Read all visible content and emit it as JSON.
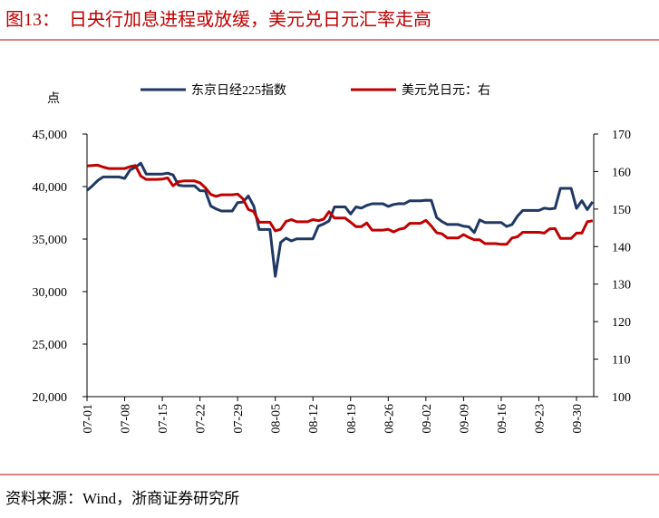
{
  "title": "图13：  日央行加息进程或放缓，美元兑日元汇率走高",
  "source": "资料来源：Wind，浙商证券研究所",
  "chart_data": {
    "type": "line",
    "y_label": "点",
    "categories": [
      "07-01",
      null,
      null,
      null,
      null,
      null,
      null,
      "07-08",
      null,
      null,
      null,
      null,
      null,
      null,
      "07-15",
      null,
      null,
      null,
      null,
      null,
      null,
      "07-22",
      null,
      null,
      null,
      null,
      null,
      null,
      "07-29",
      null,
      null,
      null,
      null,
      null,
      null,
      "08-05",
      null,
      null,
      null,
      null,
      null,
      null,
      "08-12",
      null,
      null,
      null,
      null,
      null,
      null,
      "08-19",
      null,
      null,
      null,
      null,
      null,
      null,
      "08-26",
      null,
      null,
      null,
      null,
      null,
      null,
      "09-02",
      null,
      null,
      null,
      null,
      null,
      null,
      "09-09",
      null,
      null,
      null,
      null,
      null,
      null,
      "09-16",
      null,
      null,
      null,
      null,
      null,
      null,
      "09-23",
      null,
      null,
      null,
      null,
      null,
      null,
      "09-30",
      null,
      null,
      null
    ],
    "series": [
      {
        "name": "东京日经225指数",
        "color": "#1f3864",
        "values": [
          39630,
          40070,
          40580,
          40910,
          40910,
          40910,
          40910,
          40780,
          41580,
          41830,
          42220,
          41190,
          41190,
          41190,
          41190,
          41280,
          41100,
          40130,
          40060,
          40060,
          40060,
          39600,
          39590,
          38150,
          37870,
          37670,
          37670,
          37670,
          38470,
          38530,
          39100,
          38130,
          35910,
          35910,
          35910,
          31460,
          34680,
          35090,
          34830,
          35030,
          35030,
          35030,
          35030,
          36230,
          36440,
          36730,
          38060,
          38060,
          38060,
          37390,
          38060,
          37950,
          38210,
          38360,
          38360,
          38360,
          38110,
          38290,
          38370,
          38360,
          38650,
          38650,
          38650,
          38700,
          38690,
          37050,
          36660,
          36390,
          36390,
          36390,
          36220,
          36160,
          35620,
          36830,
          36580,
          36580,
          36580,
          36580,
          36200,
          36380,
          37160,
          37720,
          37720,
          37720,
          37720,
          37940,
          37870,
          37930,
          39830,
          39830,
          39830,
          37920,
          38650,
          37810,
          38550
        ]
      },
      {
        "name": "美元兑日元：右",
        "color": "#c00000",
        "axis": "y2",
        "values": [
          161.5,
          161.6,
          161.7,
          161.2,
          160.8,
          160.8,
          160.8,
          160.8,
          161.3,
          161.6,
          158.8,
          157.9,
          157.9,
          157.9,
          158.0,
          158.3,
          156.2,
          157.3,
          157.5,
          157.5,
          157.5,
          157.0,
          155.7,
          153.9,
          153.4,
          153.8,
          153.8,
          153.8,
          154.0,
          152.7,
          149.9,
          149.3,
          146.5,
          146.5,
          146.5,
          144.2,
          144.6,
          146.7,
          147.2,
          146.6,
          146.6,
          146.6,
          147.2,
          146.9,
          147.3,
          149.3,
          147.6,
          147.6,
          147.6,
          146.5,
          145.3,
          145.3,
          146.3,
          144.4,
          144.4,
          144.4,
          144.6,
          143.9,
          144.6,
          144.9,
          146.2,
          146.2,
          146.2,
          147.0,
          145.5,
          143.7,
          143.4,
          142.3,
          142.3,
          142.3,
          143.2,
          142.4,
          141.8,
          141.8,
          140.8,
          140.8,
          140.8,
          140.6,
          140.6,
          142.3,
          142.6,
          143.8,
          143.8,
          143.8,
          143.8,
          143.6,
          144.7,
          144.8,
          142.2,
          142.2,
          142.2,
          143.6,
          143.6,
          146.6,
          146.9
        ]
      }
    ],
    "ylim": [
      20000,
      45000
    ],
    "yticks": [
      {
        "value": 20000,
        "label": "20,000"
      },
      {
        "value": 25000,
        "label": "25,000"
      },
      {
        "value": 30000,
        "label": "30,000"
      },
      {
        "value": 35000,
        "label": "35,000"
      },
      {
        "value": 40000,
        "label": "40,000"
      },
      {
        "value": 45000,
        "label": "45,000"
      }
    ],
    "y2lim": [
      100,
      170
    ],
    "y2ticks": [
      100,
      110,
      120,
      130,
      140,
      150,
      160,
      170
    ]
  }
}
